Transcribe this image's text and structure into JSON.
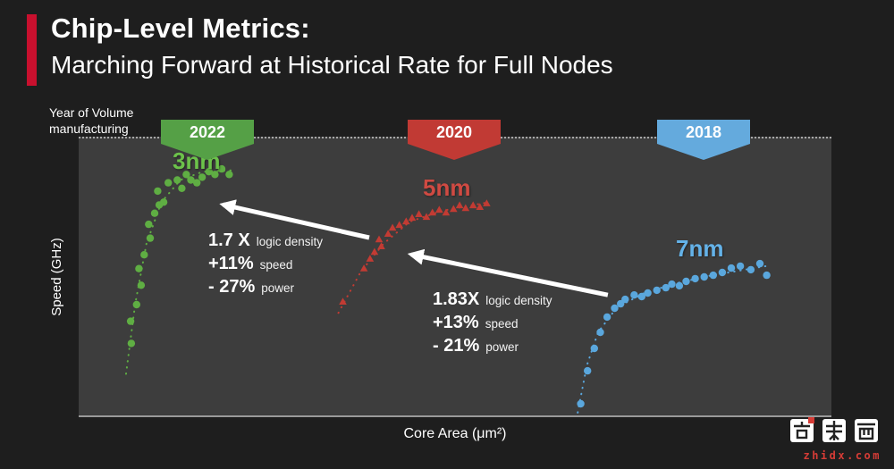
{
  "colors": {
    "background": "#1e1e1e",
    "panel": "#3d3d3d",
    "accent_red": "#c8102e",
    "arrow": "#ffffff"
  },
  "title": {
    "line1": "Chip-Level Metrics:",
    "line2": "Marching Forward at Historical Rate for Full Nodes"
  },
  "year_note": {
    "line1": "Year of Volume",
    "line2": "manufacturing"
  },
  "banners": [
    {
      "year": "2022",
      "color": "#55a046"
    },
    {
      "year": "2020",
      "color": "#c13a34"
    },
    {
      "year": "2018",
      "color": "#64aadd"
    }
  ],
  "chart_data": {
    "type": "scatter",
    "xlabel": "Core Area (μm²)",
    "ylabel": "Speed (GHz)",
    "axis_ticks": "none",
    "units_note": "Axes carry no tick labels; point coordinates are estimated in relative 0-100 plot units (x = relative core area, y = relative speed).",
    "series": [
      {
        "name": "3nm",
        "year": "2022",
        "marker": "circle",
        "color": "#5fae43",
        "label_color": "#6cc24a",
        "points": [
          [
            7,
            26
          ],
          [
            6.9,
            34
          ],
          [
            7.7,
            40
          ],
          [
            8.3,
            47
          ],
          [
            8,
            53
          ],
          [
            8.7,
            58
          ],
          [
            9.5,
            64
          ],
          [
            9.3,
            69
          ],
          [
            10.1,
            73
          ],
          [
            10.7,
            76
          ],
          [
            11.3,
            77
          ],
          [
            10.5,
            81
          ],
          [
            11.9,
            84
          ],
          [
            13.1,
            85
          ],
          [
            13.7,
            82
          ],
          [
            14.3,
            87
          ],
          [
            14.9,
            85
          ],
          [
            15.7,
            84
          ],
          [
            16.4,
            86
          ],
          [
            17.3,
            88
          ],
          [
            18.1,
            87
          ],
          [
            19,
            89
          ],
          [
            20,
            87
          ]
        ],
        "trend": [
          [
            6.3,
            15
          ],
          [
            7.5,
            40
          ],
          [
            9,
            62
          ],
          [
            11,
            77
          ],
          [
            13.5,
            85
          ],
          [
            16.5,
            88
          ],
          [
            20.5,
            88.5
          ]
        ]
      },
      {
        "name": "5nm",
        "year": "2020",
        "marker": "triangle",
        "color": "#c23b33",
        "label_color": "#cf4a42",
        "points": [
          [
            35.1,
            41
          ],
          [
            37.9,
            53
          ],
          [
            38.7,
            56.5
          ],
          [
            39.3,
            59
          ],
          [
            40.2,
            61
          ],
          [
            39.9,
            63.5
          ],
          [
            41.1,
            65.5
          ],
          [
            41.7,
            67.7
          ],
          [
            42.6,
            68.7
          ],
          [
            43.5,
            70
          ],
          [
            44.3,
            71.3
          ],
          [
            45.2,
            72.6
          ],
          [
            46.2,
            71.6
          ],
          [
            47,
            73.2
          ],
          [
            47.9,
            74.2
          ],
          [
            48.8,
            73.2
          ],
          [
            49.8,
            74.5
          ],
          [
            50.6,
            75.8
          ],
          [
            51.4,
            74.8
          ],
          [
            52.4,
            75.8
          ],
          [
            53.3,
            75.2
          ],
          [
            54.2,
            76.5
          ]
        ],
        "trend": [
          [
            34.5,
            37
          ],
          [
            37.5,
            52
          ],
          [
            40.5,
            62
          ],
          [
            44,
            70
          ],
          [
            48.5,
            74
          ],
          [
            54.5,
            77
          ]
        ]
      },
      {
        "name": "7nm",
        "year": "2018",
        "marker": "circle",
        "color": "#5aa7dd",
        "label_color": "#64b2e8",
        "points": [
          [
            66.7,
            4.2
          ],
          [
            67.6,
            16.1
          ],
          [
            68.5,
            24.2
          ],
          [
            69.3,
            30
          ],
          [
            70.2,
            35.5
          ],
          [
            71.2,
            38.7
          ],
          [
            72,
            40.3
          ],
          [
            72.6,
            41.9
          ],
          [
            73.8,
            43.5
          ],
          [
            74.8,
            42.9
          ],
          [
            75.6,
            44.2
          ],
          [
            76.8,
            45.2
          ],
          [
            78,
            46.1
          ],
          [
            78.8,
            47.4
          ],
          [
            79.8,
            46.8
          ],
          [
            80.7,
            48.4
          ],
          [
            81.9,
            49.4
          ],
          [
            83.1,
            50
          ],
          [
            84.3,
            50.6
          ],
          [
            85.5,
            51.6
          ],
          [
            86.7,
            53.2
          ],
          [
            87.9,
            53.9
          ],
          [
            89.3,
            52.6
          ],
          [
            90.5,
            54.8
          ],
          [
            91.4,
            50.6
          ]
        ],
        "trend": [
          [
            66.3,
            1
          ],
          [
            67.5,
            18
          ],
          [
            69,
            30
          ],
          [
            71.5,
            39
          ],
          [
            75,
            44
          ],
          [
            79,
            47.5
          ],
          [
            84,
            50.5
          ],
          [
            91.5,
            54
          ]
        ]
      }
    ],
    "annotations": [
      {
        "id": "gain-5nm-to-3nm",
        "arrow": {
          "from": [
            38.6,
            64.2
          ],
          "to": [
            19.2,
            76.1
          ]
        },
        "lines": [
          {
            "value": "1.7 X",
            "label": "logic density"
          },
          {
            "value": "+11%",
            "label": "speed"
          },
          {
            "value": "- 27%",
            "label": "power"
          }
        ]
      },
      {
        "id": "gain-7nm-to-5nm",
        "arrow": {
          "from": [
            70.3,
            43.5
          ],
          "to": [
            44.2,
            58.1
          ]
        },
        "lines": [
          {
            "value": "1.83X",
            "label": "logic density"
          },
          {
            "value": "+13%",
            "label": "speed"
          },
          {
            "value": "- 21%",
            "label": "power"
          }
        ]
      }
    ]
  },
  "watermark": {
    "brand": "智东西",
    "domain": "zhidx.com"
  }
}
